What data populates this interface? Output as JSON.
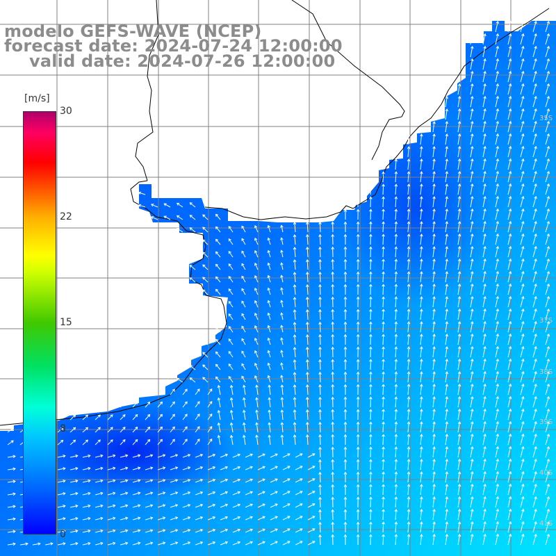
{
  "title": {
    "line1": "modelo GEFS-WAVE (NCEP)",
    "line2": "forecast date: 2024-07-24 12:00:00",
    "line3": "valid date: 2024-07-26 12:00:00"
  },
  "colorbar": {
    "unit": "[m/s]",
    "tick_labels": [
      "30",
      "22",
      "15",
      "8",
      "0"
    ],
    "min": 0,
    "max": 30,
    "colors": [
      "#0000ff",
      "#00c8ff",
      "#00ff80",
      "#ffff00",
      "#ff5000",
      "#ff0000",
      "#b0006c"
    ]
  },
  "map": {
    "variable": "wind speed and direction",
    "region": "South America - Río de la Plata / South Atlantic",
    "latitude_labels": [
      "35S",
      "37S",
      "38S",
      "39S",
      "40S",
      "41S"
    ],
    "land_color": "#ffffff",
    "grid_color": "#808080",
    "coast_color": "#000000",
    "ocean_low_color": "#0040ff",
    "ocean_high_color": "#00e8ff",
    "arrow_color": "#ffffff"
  }
}
